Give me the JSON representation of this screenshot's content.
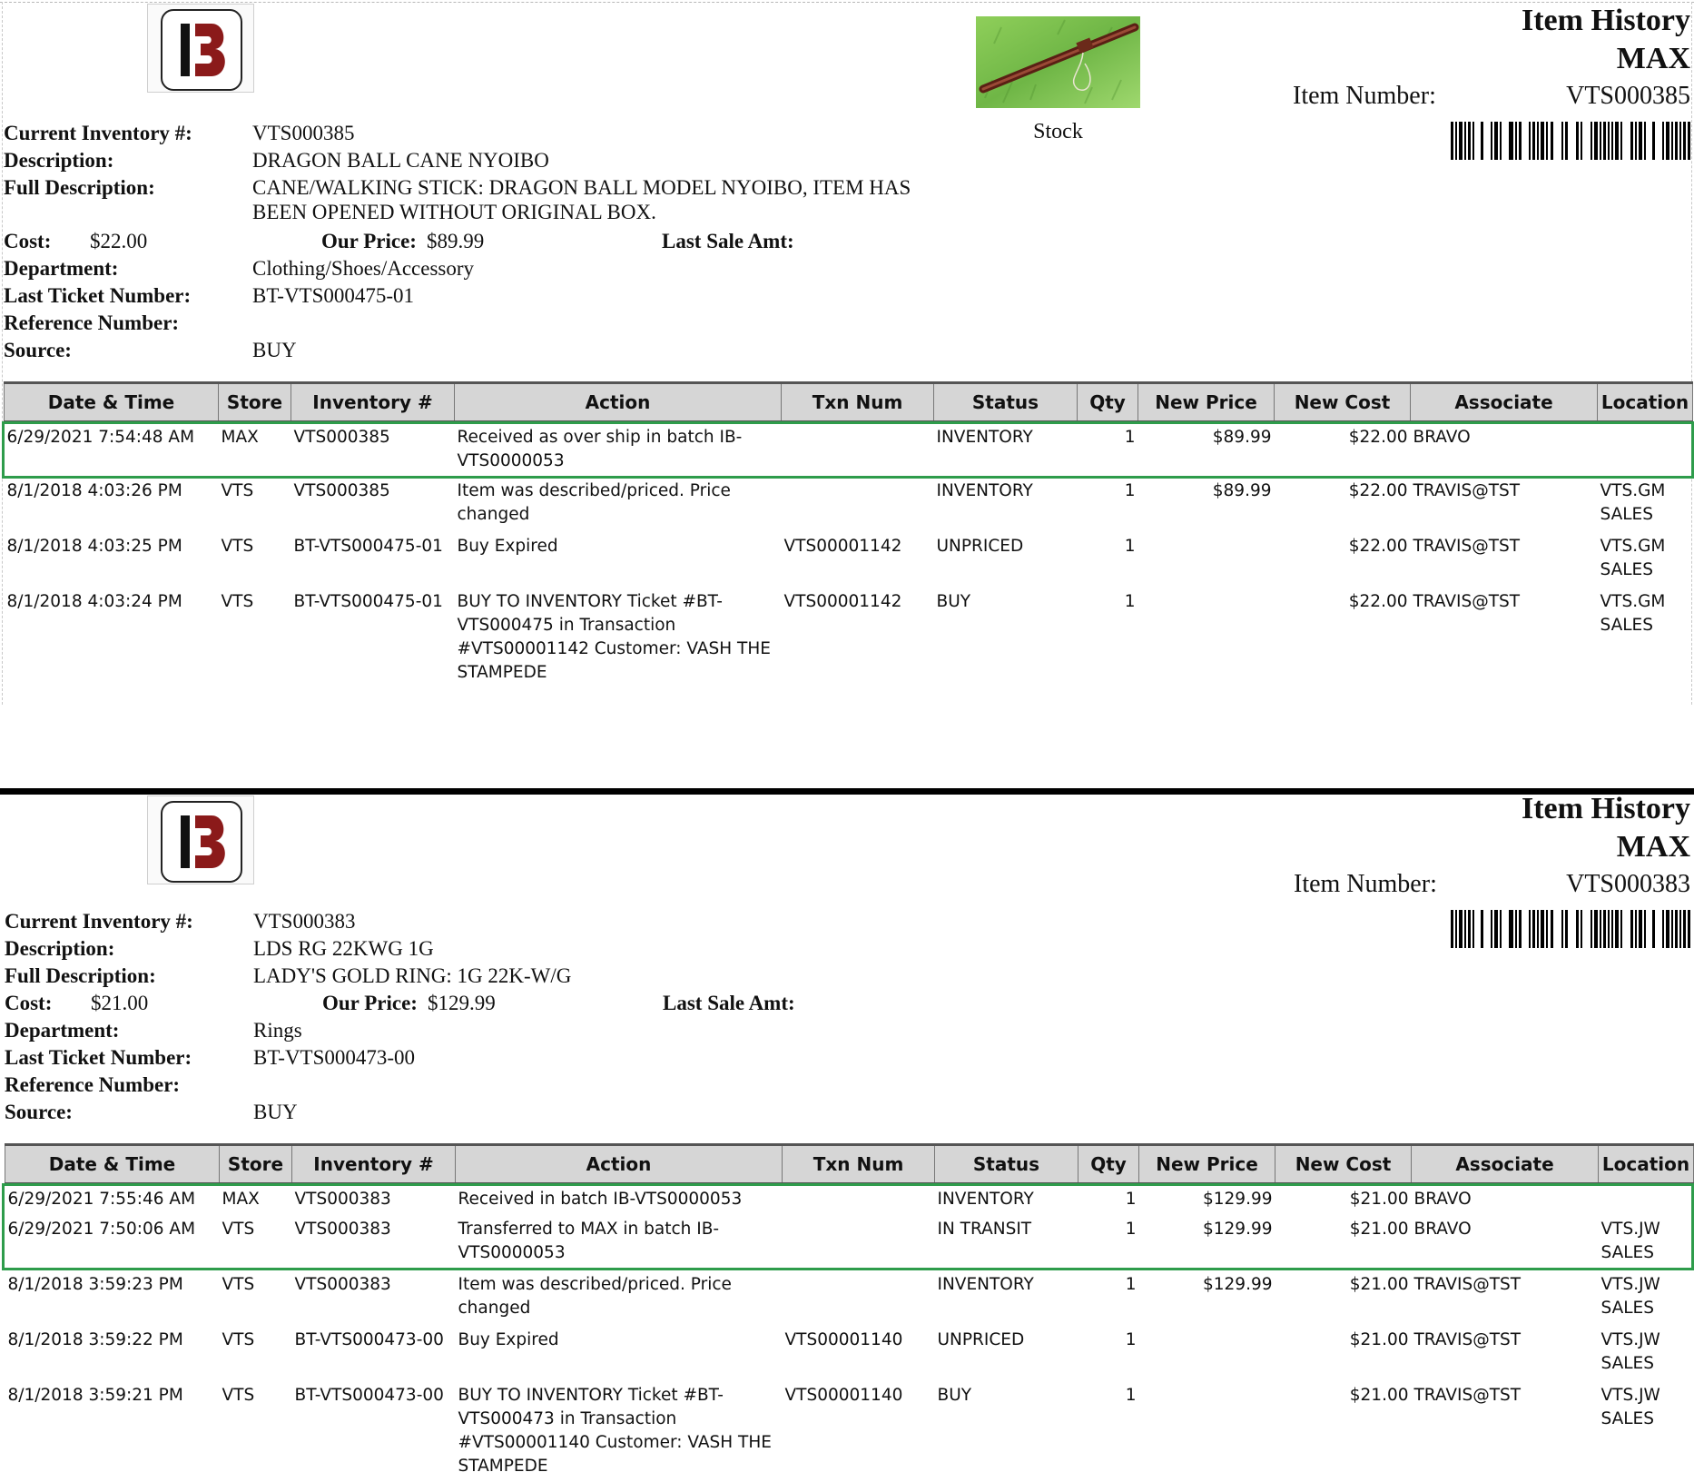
{
  "reports": [
    {
      "title": "Item History",
      "store": "MAX",
      "item_number_label": "Item Number:",
      "item_number": "VTS000385",
      "photo_caption": "Stock",
      "labels": {
        "current_inventory": "Current Inventory #:",
        "description": "Description:",
        "full_description": "Full Description:",
        "cost": "Cost:",
        "our_price": "Our Price:",
        "last_sale_amt": "Last Sale Amt:",
        "department": "Department:",
        "last_ticket": "Last Ticket Number:",
        "reference": "Reference Number:",
        "source": "Source:"
      },
      "current_inventory": "VTS000385",
      "description": "DRAGON BALL CANE NYOIBO",
      "full_description_line1": "CANE/WALKING STICK: DRAGON BALL MODEL NYOIBO, ITEM HAS",
      "full_description_line2": "BEEN OPENED WITHOUT ORIGINAL BOX.",
      "cost": "$22.00",
      "our_price": "$89.99",
      "last_sale_amt": "",
      "department": "Clothing/Shoes/Accessory",
      "last_ticket": "BT-VTS000475-01",
      "reference": "",
      "source": "BUY",
      "columns": [
        "Date & Time",
        "Store",
        "Inventory #",
        "Action",
        "Txn Num",
        "Status",
        "Qty",
        "New Price",
        "New Cost",
        "Associate",
        "Location"
      ],
      "rows": [
        {
          "datetime": "6/29/2021 7:54:48 AM",
          "store": "MAX",
          "inventory": "VTS000385",
          "action_line1": "Received as over ship in batch IB-",
          "action_line2": "VTS0000053",
          "action_line3": "",
          "action_line4": "",
          "txn": "",
          "status": "INVENTORY",
          "qty": "1",
          "new_price": "$89.99",
          "new_cost": "$22.00",
          "associate": "BRAVO",
          "location_line1": "",
          "location_line2": ""
        },
        {
          "datetime": "8/1/2018 4:03:26 PM",
          "store": "VTS",
          "inventory": "VTS000385",
          "action_line1": "Item was described/priced. Price",
          "action_line2": "changed",
          "action_line3": "",
          "action_line4": "",
          "txn": "",
          "status": "INVENTORY",
          "qty": "1",
          "new_price": "$89.99",
          "new_cost": "$22.00",
          "associate": "TRAVIS@TST",
          "location_line1": "VTS.GM",
          "location_line2": "SALES"
        },
        {
          "datetime": "8/1/2018 4:03:25 PM",
          "store": "VTS",
          "inventory": "BT-VTS000475-01",
          "action_line1": "Buy Expired",
          "action_line2": "",
          "action_line3": "",
          "action_line4": "",
          "txn": "VTS00001142",
          "status": "UNPRICED",
          "qty": "1",
          "new_price": "",
          "new_cost": "$22.00",
          "associate": "TRAVIS@TST",
          "location_line1": "VTS.GM",
          "location_line2": "SALES"
        },
        {
          "datetime": "8/1/2018 4:03:24 PM",
          "store": "VTS",
          "inventory": "BT-VTS000475-01",
          "action_line1": "BUY TO INVENTORY Ticket #BT-",
          "action_line2": "VTS000475 in Transaction",
          "action_line3": "#VTS00001142 Customer: VASH THE",
          "action_line4": "STAMPEDE",
          "txn": "VTS00001142",
          "status": "BUY",
          "qty": "1",
          "new_price": "",
          "new_cost": "$22.00",
          "associate": "TRAVIS@TST",
          "location_line1": "VTS.GM",
          "location_line2": "SALES"
        }
      ]
    },
    {
      "title": "Item History",
      "store": "MAX",
      "item_number_label": "Item Number:",
      "item_number": "VTS000383",
      "labels": {
        "current_inventory": "Current Inventory #:",
        "description": "Description:",
        "full_description": "Full Description:",
        "cost": "Cost:",
        "our_price": "Our Price:",
        "last_sale_amt": "Last Sale Amt:",
        "department": "Department:",
        "last_ticket": "Last Ticket Number:",
        "reference": "Reference Number:",
        "source": "Source:"
      },
      "current_inventory": "VTS000383",
      "description": "LDS RG 22KWG 1G",
      "full_description_line1": "LADY'S GOLD RING: 1G 22K-W/G",
      "cost": "$21.00",
      "our_price": "$129.99",
      "last_sale_amt": "",
      "department": "Rings",
      "last_ticket": "BT-VTS000473-00",
      "reference": "",
      "source": "BUY",
      "columns": [
        "Date & Time",
        "Store",
        "Inventory #",
        "Action",
        "Txn Num",
        "Status",
        "Qty",
        "New Price",
        "New Cost",
        "Associate",
        "Location"
      ],
      "rows": [
        {
          "datetime": "6/29/2021 7:55:46 AM",
          "store": "MAX",
          "inventory": "VTS000383",
          "action_line1": "Received in batch IB-VTS0000053",
          "action_line2": "",
          "action_line3": "",
          "action_line4": "",
          "txn": "",
          "status": "INVENTORY",
          "qty": "1",
          "new_price": "$129.99",
          "new_cost": "$21.00",
          "associate": "BRAVO",
          "location_line1": "",
          "location_line2": ""
        },
        {
          "datetime": "6/29/2021 7:50:06 AM",
          "store": "VTS",
          "inventory": "VTS000383",
          "action_line1": "Transferred to MAX in batch IB-",
          "action_line2": "VTS0000053",
          "action_line3": "",
          "action_line4": "",
          "txn": "",
          "status": "IN TRANSIT",
          "qty": "1",
          "new_price": "$129.99",
          "new_cost": "$21.00",
          "associate": "BRAVO",
          "location_line1": "VTS.JW",
          "location_line2": "SALES"
        },
        {
          "datetime": "8/1/2018 3:59:23 PM",
          "store": "VTS",
          "inventory": "VTS000383",
          "action_line1": "Item was described/priced. Price",
          "action_line2": "changed",
          "action_line3": "",
          "action_line4": "",
          "txn": "",
          "status": "INVENTORY",
          "qty": "1",
          "new_price": "$129.99",
          "new_cost": "$21.00",
          "associate": "TRAVIS@TST",
          "location_line1": "VTS.JW",
          "location_line2": "SALES"
        },
        {
          "datetime": "8/1/2018 3:59:22 PM",
          "store": "VTS",
          "inventory": "BT-VTS000473-00",
          "action_line1": "Buy Expired",
          "action_line2": "",
          "action_line3": "",
          "action_line4": "",
          "txn": "VTS00001140",
          "status": "UNPRICED",
          "qty": "1",
          "new_price": "",
          "new_cost": "$21.00",
          "associate": "TRAVIS@TST",
          "location_line1": "VTS.JW",
          "location_line2": "SALES"
        },
        {
          "datetime": "8/1/2018 3:59:21 PM",
          "store": "VTS",
          "inventory": "BT-VTS000473-00",
          "action_line1": "BUY TO INVENTORY Ticket #BT-",
          "action_line2": "VTS000473 in Transaction",
          "action_line3": "#VTS00001140 Customer: VASH THE",
          "action_line4": "STAMPEDE",
          "txn": "VTS00001140",
          "status": "BUY",
          "qty": "1",
          "new_price": "",
          "new_cost": "$21.00",
          "associate": "TRAVIS@TST",
          "location_line1": "VTS.JW",
          "location_line2": "SALES"
        }
      ]
    }
  ],
  "colors": {
    "highlight": "#2e9c4b",
    "header_bg": "#d6d6d6",
    "logo_red": "#8b1a1a"
  },
  "icons": {
    "logo": "b-logo-icon",
    "barcode": "barcode-icon",
    "photo": "walking-stick-photo"
  }
}
